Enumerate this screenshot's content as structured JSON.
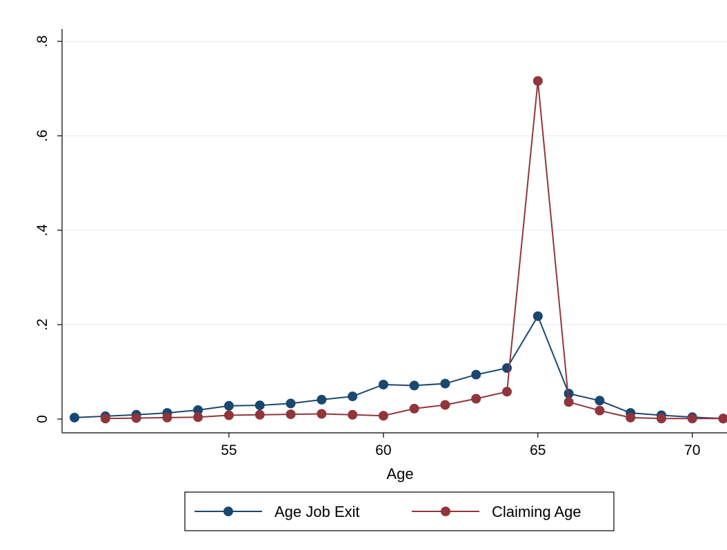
{
  "chart_data": {
    "type": "line",
    "title": "",
    "xlabel": "Age",
    "ylabel": "",
    "xlim": [
      50,
      71
    ],
    "ylim": [
      0,
      0.8
    ],
    "x_ticks": [
      55,
      60,
      65,
      70
    ],
    "x_tick_labels": [
      "55",
      "60",
      "65",
      "70"
    ],
    "y_ticks": [
      0,
      0.2,
      0.4,
      0.6,
      0.8
    ],
    "y_tick_labels": [
      "0",
      ".2",
      ".4",
      ".6",
      ".8"
    ],
    "grid": true,
    "legend_position": "bottom",
    "series": [
      {
        "name": "Age Job Exit",
        "color": "#1a476f",
        "x": [
          50,
          51,
          52,
          53,
          54,
          55,
          56,
          57,
          58,
          59,
          60,
          61,
          62,
          63,
          64,
          65,
          66,
          67,
          68,
          69,
          70,
          71
        ],
        "y": [
          0.003,
          0.006,
          0.009,
          0.013,
          0.019,
          0.028,
          0.029,
          0.033,
          0.041,
          0.048,
          0.073,
          0.071,
          0.075,
          0.094,
          0.108,
          0.218,
          0.054,
          0.039,
          0.013,
          0.008,
          0.004,
          0.001
        ]
      },
      {
        "name": "Claiming Age",
        "color": "#90353b",
        "x": [
          51,
          52,
          53,
          54,
          55,
          56,
          57,
          58,
          59,
          60,
          61,
          62,
          63,
          64,
          65,
          66,
          67,
          68,
          69,
          70,
          71
        ],
        "y": [
          0.001,
          0.002,
          0.003,
          0.004,
          0.008,
          0.009,
          0.01,
          0.011,
          0.009,
          0.007,
          0.022,
          0.03,
          0.043,
          0.058,
          0.716,
          0.036,
          0.018,
          0.003,
          0.001,
          0.001,
          0.001
        ]
      }
    ]
  }
}
